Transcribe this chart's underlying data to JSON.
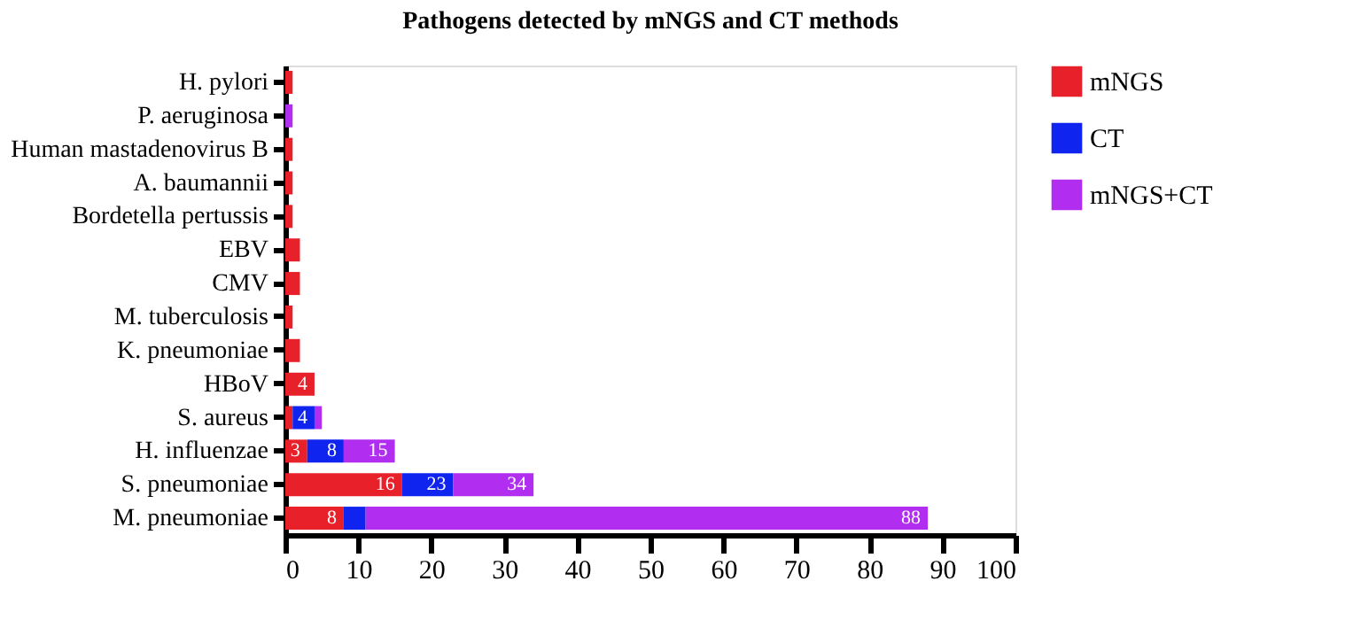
{
  "chart_data": {
    "type": "bar",
    "title": "Pathogens detected by mNGS and CT methods",
    "orientation": "horizontal",
    "stacked": true,
    "categories": [
      "H. pylori",
      "P. aeruginosa",
      "Human mastadenovirus B",
      "A. baumannii",
      "Bordetella pertussis",
      "EBV",
      "CMV",
      "M. tuberculosis",
      "K. pneumoniae",
      "HBoV",
      "S. aureus",
      "H. influenzae",
      "S. pneumoniae",
      "M. pneumoniae"
    ],
    "series": [
      {
        "name": "mNGS",
        "color": "#e8202a",
        "values": [
          1,
          null,
          1,
          1,
          1,
          2,
          2,
          1,
          2,
          4,
          1,
          3,
          16,
          8
        ]
      },
      {
        "name": "CT",
        "color": "#1024f0",
        "values": [
          null,
          null,
          null,
          null,
          null,
          null,
          null,
          null,
          null,
          null,
          3,
          5,
          7,
          3
        ]
      },
      {
        "name": "mNGS+CT",
        "color": "#b12ef0",
        "values": [
          null,
          1,
          null,
          null,
          null,
          null,
          null,
          null,
          null,
          null,
          1,
          7,
          11,
          77
        ]
      }
    ],
    "annotations": [
      {
        "text": "4",
        "x": 4,
        "y": "HBoV"
      },
      {
        "text": "4",
        "x": 4,
        "y": "S. aureus"
      },
      {
        "text": "3",
        "x": 3,
        "y": "H. influenzae"
      },
      {
        "text": "8",
        "x": 8,
        "y": "H. influenzae"
      },
      {
        "text": "15",
        "x": 15,
        "y": "H. influenzae"
      },
      {
        "text": "16",
        "x": 16,
        "y": "S. pneumoniae"
      },
      {
        "text": "23",
        "x": 23,
        "y": "S. pneumoniae"
      },
      {
        "text": "34",
        "x": 34,
        "y": "S. pneumoniae"
      },
      {
        "text": "8",
        "x": 8,
        "y": "M. pneumoniae"
      },
      {
        "text": "88",
        "x": 88,
        "y": "M. pneumoniae"
      }
    ],
    "xlim": [
      0,
      100
    ],
    "xticks": [
      0,
      10,
      20,
      30,
      40,
      50,
      60,
      70,
      80,
      90,
      100
    ],
    "grid": false,
    "legend": "top right"
  }
}
